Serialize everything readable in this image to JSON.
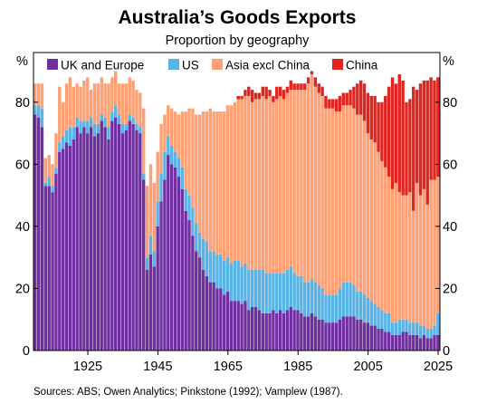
{
  "chart_data": {
    "type": "bar",
    "stacked": true,
    "title": "Australia’s Goods Exports",
    "subtitle": "Proportion by geography",
    "unit_left": "%",
    "unit_right": "%",
    "ylim": [
      0,
      96
    ],
    "y_ticks": [
      0,
      20,
      40,
      60,
      80
    ],
    "x_ticks": [
      1925,
      1945,
      1965,
      1985,
      2005,
      2025
    ],
    "x_range": [
      1910,
      2025
    ],
    "grid": false,
    "legend_position": "top",
    "source": "Sources: ABS; Owen Analytics; Pinkstone (1992); Vamplew (1987).",
    "colors": {
      "uk_europe": "#7030a0",
      "us": "#58b4e6",
      "asia": "#ff9f74",
      "china": "#e0241f"
    },
    "series": [
      {
        "key": "uk_europe",
        "name": "UK and Europe"
      },
      {
        "key": "us",
        "name": "US"
      },
      {
        "key": "asia",
        "name": "Asia excl China"
      },
      {
        "key": "china",
        "name": "China"
      }
    ],
    "x": [
      1910,
      1911,
      1912,
      1913,
      1914,
      1915,
      1916,
      1917,
      1918,
      1919,
      1920,
      1921,
      1922,
      1923,
      1924,
      1925,
      1926,
      1927,
      1928,
      1929,
      1930,
      1931,
      1932,
      1933,
      1934,
      1935,
      1936,
      1937,
      1938,
      1939,
      1940,
      1941,
      1942,
      1943,
      1944,
      1945,
      1946,
      1947,
      1948,
      1949,
      1950,
      1951,
      1952,
      1953,
      1954,
      1955,
      1956,
      1957,
      1958,
      1959,
      1960,
      1961,
      1962,
      1963,
      1964,
      1965,
      1966,
      1967,
      1968,
      1969,
      1970,
      1971,
      1972,
      1973,
      1974,
      1975,
      1976,
      1977,
      1978,
      1979,
      1980,
      1981,
      1982,
      1983,
      1984,
      1985,
      1986,
      1987,
      1988,
      1989,
      1990,
      1991,
      1992,
      1993,
      1994,
      1995,
      1996,
      1997,
      1998,
      1999,
      2000,
      2001,
      2002,
      2003,
      2004,
      2005,
      2006,
      2007,
      2008,
      2009,
      2010,
      2011,
      2012,
      2013,
      2014,
      2015,
      2016,
      2017,
      2018,
      2019,
      2020,
      2021,
      2022,
      2023,
      2024,
      2025
    ],
    "uk_europe": [
      76,
      75,
      72,
      53,
      53,
      51,
      57,
      64,
      65,
      67,
      66,
      68,
      72,
      70,
      72,
      70,
      72,
      69,
      70,
      74,
      72,
      68,
      74,
      75,
      73,
      70,
      71,
      74,
      73,
      71,
      70,
      55,
      26,
      31,
      27,
      40,
      48,
      55,
      63,
      60,
      59,
      56,
      52,
      45,
      42,
      37,
      32,
      30,
      26,
      24,
      22,
      22,
      20,
      20,
      18,
      19,
      16,
      16,
      16,
      15,
      16,
      13,
      14,
      14,
      13,
      12,
      12,
      12,
      13,
      12,
      13,
      12,
      13,
      14,
      13,
      13,
      12,
      11,
      11,
      12,
      11,
      10,
      10,
      9,
      9,
      9,
      9,
      10,
      11,
      11,
      11,
      11,
      10,
      10,
      9,
      9,
      8,
      8,
      7,
      7,
      6,
      6,
      5,
      5,
      5,
      6,
      6,
      5,
      5,
      5,
      4,
      5,
      4,
      4,
      5,
      5
    ],
    "us": [
      3,
      4,
      6,
      1,
      3,
      2,
      2,
      3,
      4,
      4,
      6,
      4,
      3,
      4,
      2,
      4,
      3,
      4,
      3,
      2,
      3,
      4,
      3,
      4,
      3,
      3,
      2,
      2,
      2,
      2,
      2,
      2,
      4,
      6,
      5,
      8,
      9,
      9,
      6,
      6,
      5,
      6,
      7,
      7,
      8,
      9,
      9,
      8,
      10,
      11,
      10,
      10,
      11,
      11,
      11,
      11,
      12,
      13,
      13,
      12,
      12,
      13,
      12,
      12,
      13,
      14,
      13,
      13,
      12,
      13,
      12,
      13,
      13,
      13,
      12,
      11,
      12,
      11,
      11,
      11,
      11,
      11,
      10,
      9,
      9,
      9,
      9,
      10,
      11,
      11,
      11,
      10,
      9,
      9,
      9,
      8,
      8,
      7,
      7,
      6,
      6,
      6,
      4,
      4,
      5,
      4,
      4,
      4,
      4,
      4,
      4,
      3,
      3,
      3,
      3,
      7
    ],
    "asia": [
      7,
      7,
      8,
      8,
      7,
      7,
      11,
      18,
      11,
      15,
      16,
      13,
      11,
      11,
      13,
      14,
      9,
      13,
      13,
      12,
      11,
      14,
      11,
      11,
      10,
      13,
      13,
      12,
      12,
      11,
      11,
      21,
      23,
      23,
      22,
      16,
      16,
      12,
      10,
      12,
      13,
      14,
      18,
      25,
      28,
      32,
      35,
      38,
      41,
      42,
      46,
      45,
      46,
      46,
      48,
      49,
      51,
      51,
      52,
      54,
      54,
      56,
      54,
      55,
      55,
      56,
      56,
      57,
      55,
      56,
      57,
      56,
      57,
      57,
      59,
      60,
      60,
      62,
      64,
      66,
      63,
      62,
      62,
      60,
      60,
      60,
      59,
      57,
      57,
      57,
      57,
      57,
      57,
      57,
      56,
      53,
      52,
      52,
      50,
      48,
      47,
      44,
      43,
      45,
      41,
      40,
      40,
      42,
      36,
      45,
      42,
      44,
      40,
      48,
      47,
      44
    ],
    "china": [
      0,
      0,
      0,
      0,
      0,
      0,
      0,
      0,
      0,
      0,
      0,
      0,
      0,
      0,
      0,
      0,
      0,
      0,
      0,
      0,
      0,
      0,
      0,
      0,
      0,
      0,
      0,
      0,
      0,
      0,
      0,
      0,
      0,
      0,
      0,
      0,
      0,
      0,
      0,
      0,
      0,
      0,
      0,
      0,
      0,
      0,
      0,
      0,
      0,
      0,
      0,
      0,
      0,
      0,
      0,
      0,
      0,
      0,
      1,
      1,
      2,
      3,
      4,
      2,
      2,
      3,
      4,
      2,
      2,
      4,
      3,
      3,
      2,
      3,
      2,
      2,
      2,
      2,
      2,
      1,
      3,
      3,
      3,
      4,
      3,
      3,
      4,
      5,
      4,
      4,
      5,
      7,
      10,
      11,
      12,
      13,
      14,
      15,
      16,
      19,
      23,
      29,
      36,
      32,
      38,
      37,
      30,
      30,
      40,
      30,
      36,
      35,
      40,
      33,
      32,
      32
    ]
  }
}
